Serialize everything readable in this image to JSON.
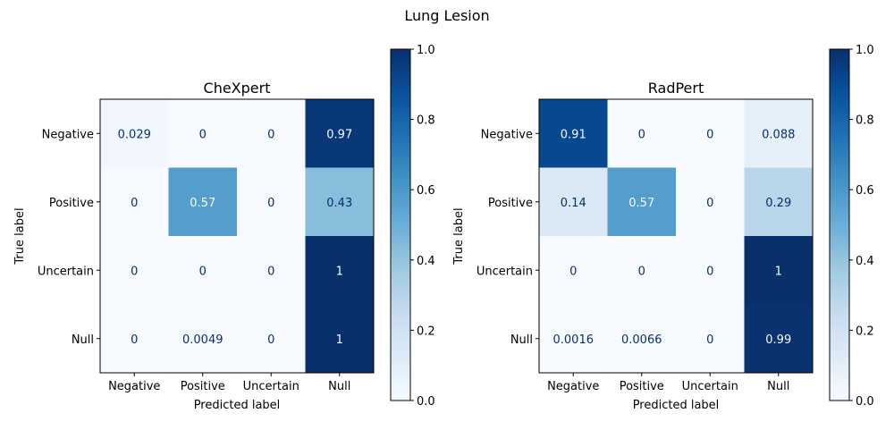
{
  "title": "Lung Lesion",
  "chart_data": [
    {
      "type": "heatmap",
      "title": "CheXpert",
      "xlabel": "Predicted label",
      "ylabel": "True label",
      "x_categories": [
        "Negative",
        "Positive",
        "Uncertain",
        "Null"
      ],
      "y_categories": [
        "Negative",
        "Positive",
        "Uncertain",
        "Null"
      ],
      "values": [
        [
          0.029,
          0,
          0,
          0.97
        ],
        [
          0,
          0.57,
          0,
          0.43
        ],
        [
          0,
          0,
          0,
          1
        ],
        [
          0,
          0.0049,
          0,
          1
        ]
      ],
      "value_labels": [
        [
          "0.029",
          "0",
          "0",
          "0.97"
        ],
        [
          "0",
          "0.57",
          "0",
          "0.43"
        ],
        [
          "0",
          "0",
          "0",
          "1"
        ],
        [
          "0",
          "0.0049",
          "0",
          "1"
        ]
      ],
      "colormap": "Blues",
      "colorbar": {
        "range": [
          0.0,
          1.0
        ],
        "ticks": [
          0.0,
          0.2,
          0.4,
          0.6,
          0.8,
          1.0
        ],
        "tick_labels": [
          "0.0",
          "0.2",
          "0.4",
          "0.6",
          "0.8",
          "1.0"
        ]
      }
    },
    {
      "type": "heatmap",
      "title": "RadPert",
      "xlabel": "Predicted label",
      "ylabel": "True label",
      "x_categories": [
        "Negative",
        "Positive",
        "Uncertain",
        "Null"
      ],
      "y_categories": [
        "Negative",
        "Positive",
        "Uncertain",
        "Null"
      ],
      "values": [
        [
          0.91,
          0,
          0,
          0.088
        ],
        [
          0.14,
          0.57,
          0,
          0.29
        ],
        [
          0,
          0,
          0,
          1
        ],
        [
          0.0016,
          0.0066,
          0,
          0.99
        ]
      ],
      "value_labels": [
        [
          "0.91",
          "0",
          "0",
          "0.088"
        ],
        [
          "0.14",
          "0.57",
          "0",
          "0.29"
        ],
        [
          "0",
          "0",
          "0",
          "1"
        ],
        [
          "0.0016",
          "0.0066",
          "0",
          "0.99"
        ]
      ],
      "colormap": "Blues",
      "colorbar": {
        "range": [
          0.0,
          1.0
        ],
        "ticks": [
          0.0,
          0.2,
          0.4,
          0.6,
          0.8,
          1.0
        ],
        "tick_labels": [
          "0.0",
          "0.2",
          "0.4",
          "0.6",
          "0.8",
          "1.0"
        ]
      }
    }
  ]
}
